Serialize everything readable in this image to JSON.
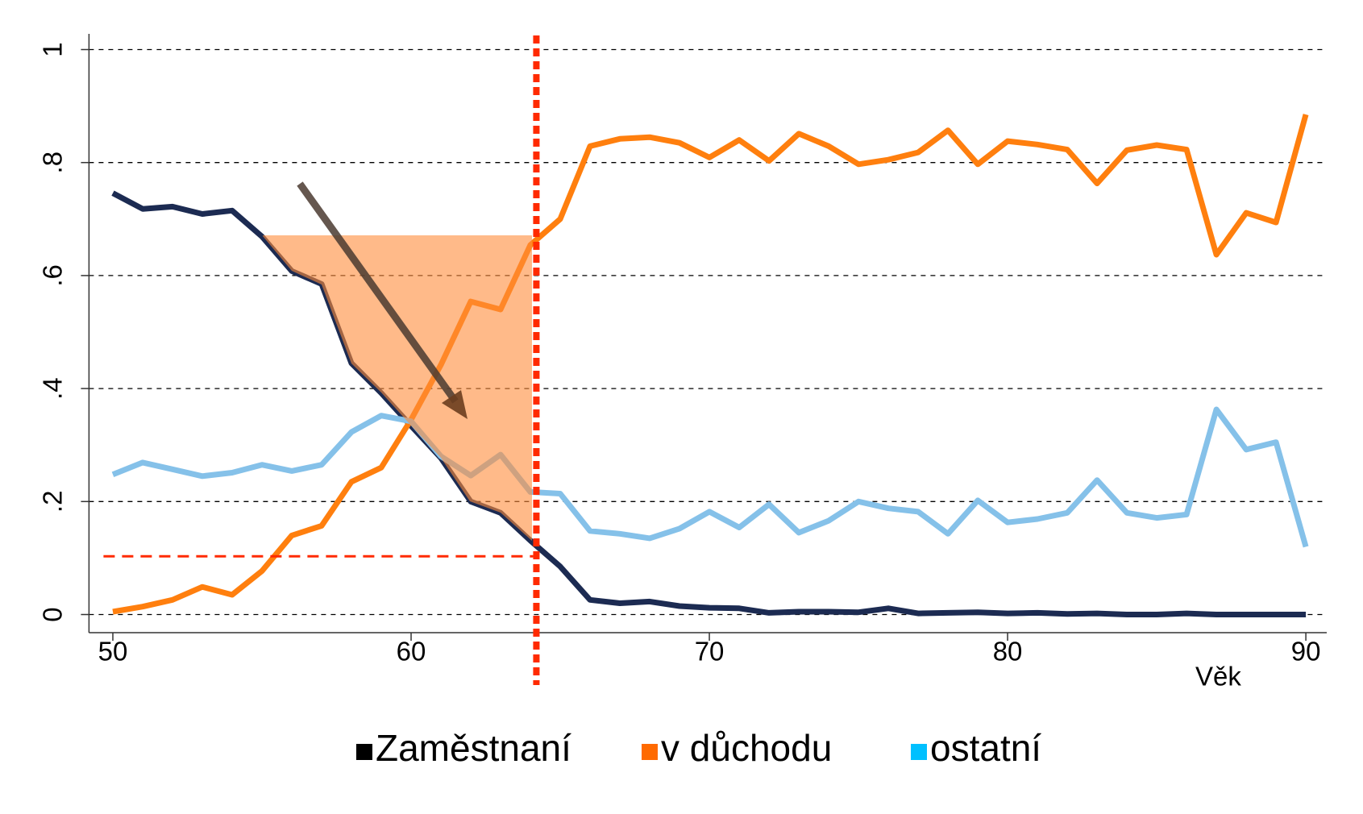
{
  "chart_data": {
    "type": "line",
    "x_label": "Věk",
    "x": [
      50,
      51,
      52,
      53,
      54,
      55,
      56,
      57,
      58,
      59,
      60,
      61,
      62,
      63,
      64,
      65,
      66,
      67,
      68,
      69,
      70,
      71,
      72,
      73,
      74,
      75,
      76,
      77,
      78,
      79,
      80,
      81,
      82,
      83,
      84,
      85,
      86,
      87,
      88,
      89,
      90
    ],
    "series": [
      {
        "name": "Zaměstnaní",
        "color": "#1c2b52",
        "legend_color": "#000000",
        "values": [
          0.746,
          0.718,
          0.722,
          0.709,
          0.715,
          0.669,
          0.608,
          0.585,
          0.445,
          0.392,
          0.334,
          0.277,
          0.2,
          0.18,
          0.131,
          0.085,
          0.026,
          0.02,
          0.023,
          0.015,
          0.012,
          0.011,
          0.003,
          0.005,
          0.005,
          0.004,
          0.011,
          0.002,
          0.003,
          0.004,
          0.002,
          0.003,
          0.001,
          0.002,
          0,
          0,
          0.002,
          0,
          0,
          0,
          0
        ]
      },
      {
        "name": "v důchodu",
        "color": "#ff7f0e",
        "legend_color": "#ff6a00",
        "values": [
          0.005,
          0.014,
          0.026,
          0.049,
          0.035,
          0.077,
          0.14,
          0.157,
          0.235,
          0.26,
          0.345,
          0.442,
          0.554,
          0.54,
          0.654,
          0.7,
          0.829,
          0.842,
          0.845,
          0.835,
          0.809,
          0.84,
          0.803,
          0.851,
          0.829,
          0.797,
          0.805,
          0.818,
          0.857,
          0.797,
          0.838,
          0.832,
          0.823,
          0.763,
          0.822,
          0.831,
          0.823,
          0.637,
          0.711,
          0.694,
          0.885
        ]
      },
      {
        "name": "ostatní",
        "color": "#85c1e9",
        "legend_color": "#00c0ff",
        "values": [
          0.248,
          0.269,
          0.257,
          0.245,
          0.251,
          0.265,
          0.254,
          0.265,
          0.323,
          0.352,
          0.342,
          0.28,
          0.246,
          0.283,
          0.217,
          0.214,
          0.148,
          0.143,
          0.135,
          0.152,
          0.182,
          0.154,
          0.195,
          0.145,
          0.166,
          0.2,
          0.188,
          0.182,
          0.143,
          0.202,
          0.163,
          0.169,
          0.18,
          0.238,
          0.18,
          0.171,
          0.177,
          0.363,
          0.292,
          0.305,
          0.12
        ]
      }
    ],
    "xlim": [
      49.2,
      90.7
    ],
    "xticks": [
      50,
      60,
      70,
      80,
      90
    ],
    "ylim": [
      0,
      1
    ],
    "yticks": [
      0,
      {
        "value": 0.2,
        "label": ".2"
      },
      {
        "value": 0.4,
        "label": ".4"
      },
      {
        "value": 0.6,
        "label": ".6"
      },
      {
        "value": 0.8,
        "label": ".8"
      },
      1
    ],
    "grid": true,
    "vline_x": 64.2,
    "vline_color": "#ff2a00",
    "hline_y": 0.103,
    "hline_color": "#ff2a00"
  }
}
